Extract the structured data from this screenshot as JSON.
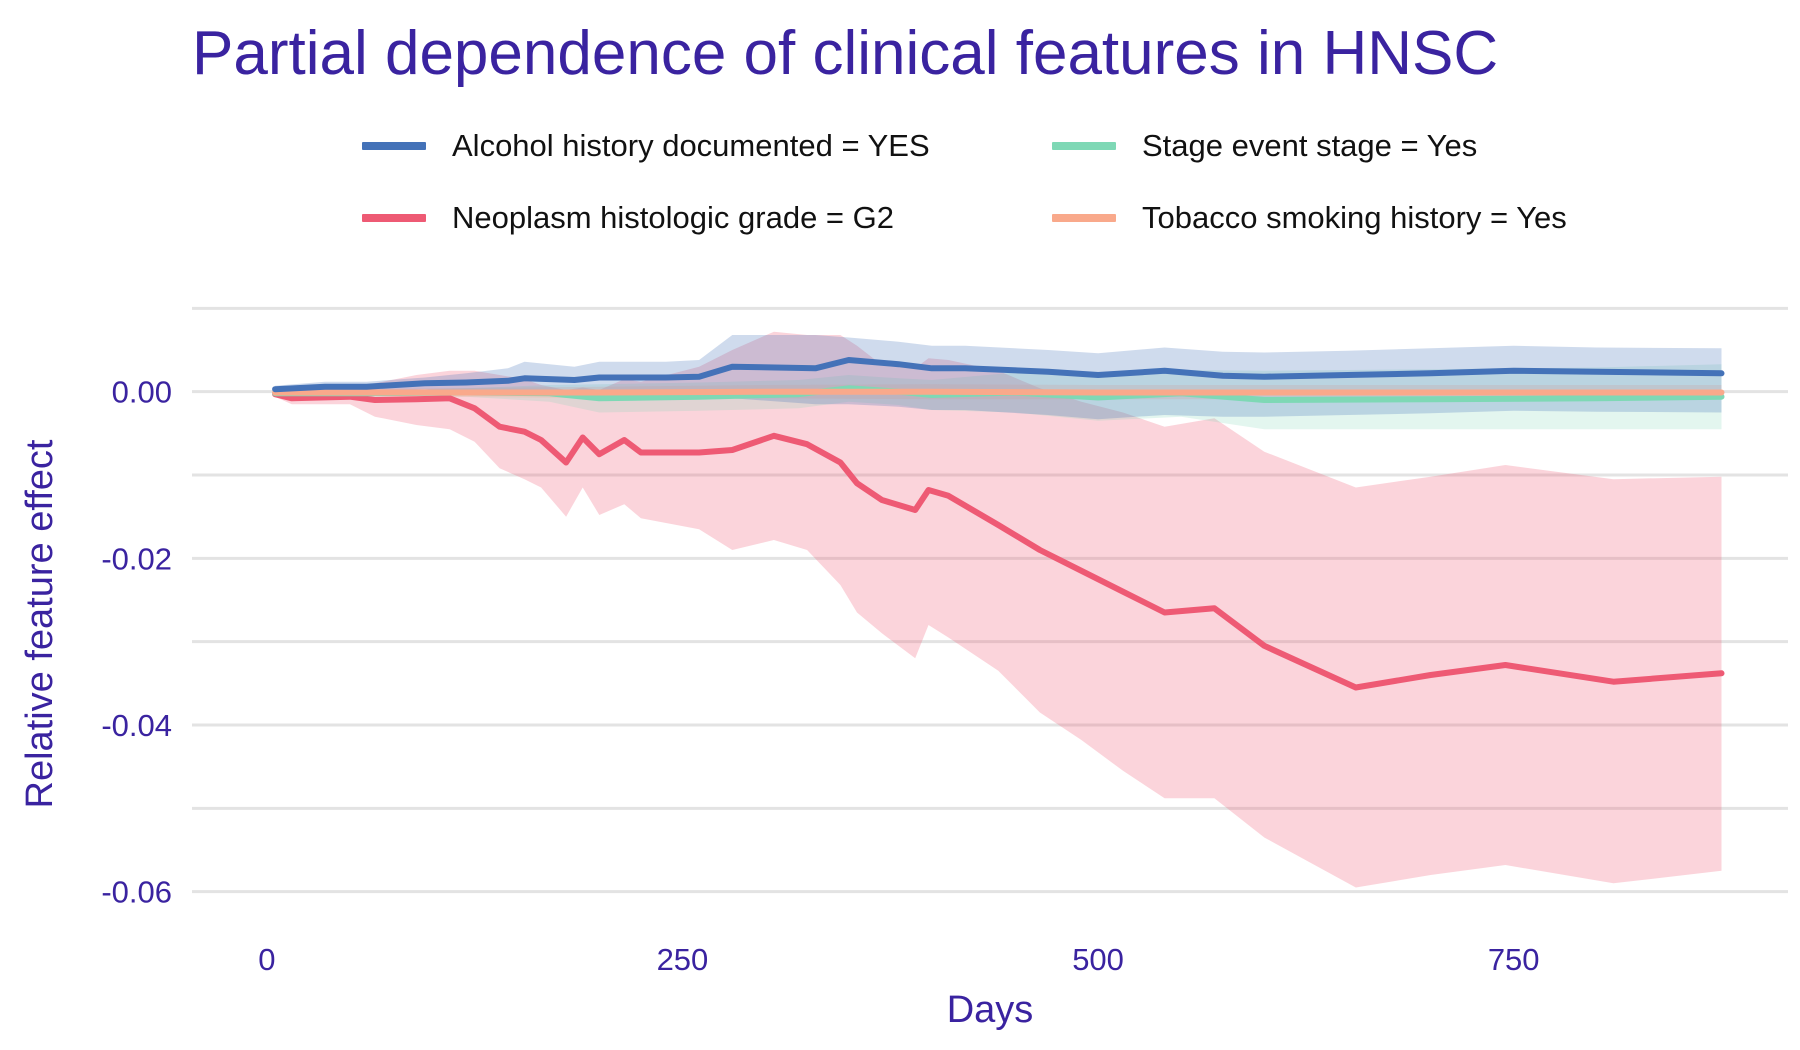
{
  "chart_data": {
    "type": "line",
    "title": "Partial dependence of clinical features in HNSC",
    "xlabel": "Days",
    "ylabel": "Relative feature effect",
    "xlim": [
      -45,
      915
    ],
    "ylim": [
      -0.064,
      0.011
    ],
    "x_ticks": [
      0,
      250,
      500,
      750
    ],
    "x_tick_labels": [
      "0",
      "250",
      "500",
      "750"
    ],
    "y_ticks": [
      0.0,
      -0.02,
      -0.04,
      -0.06
    ],
    "y_tick_labels": [
      "0.00",
      "-0.02",
      "-0.04",
      "-0.06"
    ],
    "y_minor_gridlines": [
      0.01,
      -0.01,
      -0.03,
      -0.05
    ],
    "grid": "horizontal",
    "legend_position": "top",
    "series": [
      {
        "name": "Alcohol history documented = YES",
        "color": "#4472b8",
        "x": [
          5,
          35,
          60,
          95,
          120,
          145,
          155,
          185,
          200,
          240,
          260,
          280,
          330,
          350,
          380,
          400,
          420,
          470,
          500,
          540,
          575,
          600,
          650,
          700,
          750,
          800,
          875
        ],
        "y": [
          0.0003,
          0.0006,
          0.0006,
          0.001,
          0.0011,
          0.0013,
          0.0016,
          0.0014,
          0.0017,
          0.0017,
          0.0018,
          0.003,
          0.0028,
          0.0038,
          0.0033,
          0.0028,
          0.0028,
          0.0024,
          0.002,
          0.0025,
          0.0019,
          0.0018,
          0.002,
          0.0022,
          0.0025,
          0.0024,
          0.0022
        ],
        "lower": [
          0.0,
          0.0001,
          0.0001,
          0.0003,
          0.0,
          -0.0002,
          -0.0002,
          -0.0002,
          -0.0002,
          -0.0002,
          -0.0002,
          -0.0008,
          -0.0015,
          -0.0015,
          -0.0018,
          -0.0022,
          -0.0022,
          -0.0028,
          -0.0033,
          -0.0028,
          -0.003,
          -0.003,
          -0.0028,
          -0.0026,
          -0.0023,
          -0.0024,
          -0.0025
        ],
        "upper": [
          0.0007,
          0.0012,
          0.0012,
          0.0017,
          0.0022,
          0.0028,
          0.0036,
          0.003,
          0.0036,
          0.0036,
          0.0038,
          0.0068,
          0.0068,
          0.0065,
          0.006,
          0.0055,
          0.0055,
          0.005,
          0.0046,
          0.0053,
          0.0048,
          0.0047,
          0.0049,
          0.0052,
          0.0055,
          0.0053,
          0.0052
        ]
      },
      {
        "name": "Neoplasm histologic grade = G2",
        "color": "#ee5a74",
        "x": [
          5,
          15,
          50,
          65,
          90,
          110,
          125,
          140,
          155,
          165,
          180,
          190,
          200,
          215,
          225,
          260,
          280,
          305,
          325,
          345,
          355,
          370,
          390,
          398,
          410,
          440,
          465,
          490,
          515,
          540,
          570,
          600,
          655,
          700,
          745,
          810,
          875
        ],
        "y": [
          -0.0003,
          -0.0008,
          -0.0006,
          -0.001,
          -0.0009,
          -0.0008,
          -0.002,
          -0.0042,
          -0.0048,
          -0.0058,
          -0.0085,
          -0.0055,
          -0.0075,
          -0.0058,
          -0.0073,
          -0.0073,
          -0.007,
          -0.0053,
          -0.0063,
          -0.0085,
          -0.011,
          -0.013,
          -0.0142,
          -0.0118,
          -0.0125,
          -0.016,
          -0.019,
          -0.0215,
          -0.024,
          -0.0265,
          -0.026,
          -0.0305,
          -0.0355,
          -0.034,
          -0.0328,
          -0.0348,
          -0.0338
        ],
        "lower": [
          -0.0006,
          -0.0015,
          -0.0015,
          -0.003,
          -0.004,
          -0.0045,
          -0.006,
          -0.0092,
          -0.0105,
          -0.0115,
          -0.015,
          -0.0115,
          -0.0148,
          -0.0135,
          -0.0152,
          -0.0165,
          -0.019,
          -0.0178,
          -0.019,
          -0.0232,
          -0.0265,
          -0.029,
          -0.032,
          -0.028,
          -0.0295,
          -0.0335,
          -0.0385,
          -0.0418,
          -0.0455,
          -0.0488,
          -0.0488,
          -0.0535,
          -0.0595,
          -0.058,
          -0.0568,
          -0.059,
          -0.0575
        ],
        "upper": [
          0.0,
          0.0003,
          0.0005,
          0.001,
          0.002,
          0.0025,
          0.0025,
          0.002,
          0.0015,
          0.0008,
          0.0002,
          0.0005,
          0.0002,
          0.0015,
          0.0012,
          0.003,
          0.005,
          0.0072,
          0.0068,
          0.0068,
          0.0055,
          0.0032,
          0.0028,
          0.004,
          0.0038,
          0.0025,
          0.0004,
          -0.0012,
          -0.0025,
          -0.0042,
          -0.0032,
          -0.0072,
          -0.0115,
          -0.0102,
          -0.0088,
          -0.0105,
          -0.0102
        ]
      },
      {
        "name": "Stage event stage = Yes",
        "color": "#7ed8b5",
        "x": [
          5,
          60,
          120,
          170,
          200,
          260,
          320,
          350,
          380,
          400,
          450,
          500,
          550,
          600,
          700,
          800,
          875
        ],
        "y": [
          -0.0002,
          -0.0002,
          -0.0001,
          -0.0002,
          -0.0008,
          -0.0006,
          -0.0003,
          0.0004,
          0.0,
          -0.0004,
          -0.0001,
          -0.0007,
          -0.0002,
          -0.001,
          -0.0009,
          -0.0008,
          -0.0006
        ],
        "lower": [
          -0.0005,
          -0.0005,
          -0.0006,
          -0.0012,
          -0.0025,
          -0.0023,
          -0.002,
          -0.0012,
          -0.0016,
          -0.0022,
          -0.0025,
          -0.0035,
          -0.003,
          -0.0045,
          -0.0045,
          -0.0045,
          -0.0045
        ],
        "upper": [
          0.0001,
          0.0001,
          0.0004,
          0.0008,
          0.0009,
          0.0011,
          0.0014,
          0.002,
          0.0016,
          0.0014,
          0.0023,
          0.0021,
          0.0026,
          0.0025,
          0.0027,
          0.0029,
          0.0033
        ]
      },
      {
        "name": "Tobacco smoking history = Yes",
        "color": "#f9a98b",
        "x": [
          5,
          100,
          200,
          300,
          400,
          500,
          600,
          700,
          800,
          875
        ],
        "y": [
          -0.0001,
          -0.0001,
          -0.0001,
          0.0,
          0.0,
          -0.0001,
          -0.0001,
          -0.0001,
          -0.0001,
          -0.0001
        ],
        "lower": [
          -0.0004,
          -0.0006,
          -0.0008,
          -0.0008,
          -0.0009,
          -0.0009,
          -0.0009,
          -0.0009,
          -0.0009,
          -0.0009
        ],
        "upper": [
          0.0002,
          0.0004,
          0.0006,
          0.0008,
          0.0009,
          0.0008,
          0.0008,
          0.0008,
          0.0008,
          0.0008
        ]
      }
    ]
  }
}
